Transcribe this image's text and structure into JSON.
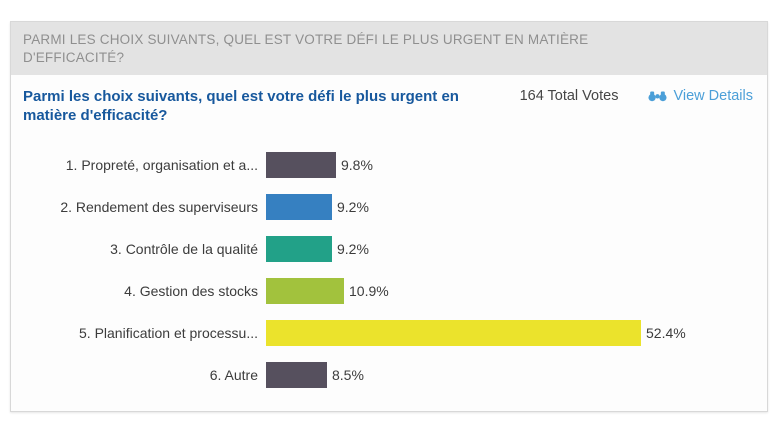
{
  "header": {
    "title": "PARMI LES CHOIX SUIVANTS, QUEL EST VOTRE DÉFI LE PLUS URGENT EN MATIÈRE D'EFFICACITÉ?"
  },
  "question": {
    "text": "Parmi les choix suivants, quel est votre défi le plus urgent en matière d'efficacité?",
    "total_votes_label": "164 Total Votes",
    "view_details_label": "View Details",
    "view_details_icon": "binoculars-icon"
  },
  "chart_data": {
    "type": "bar",
    "orientation": "horizontal",
    "title": "Parmi les choix suivants, quel est votre défi le plus urgent en matière d'efficacité?",
    "total_votes": 164,
    "categories": [
      "1. Propreté, organisation et a...",
      "2. Rendement des superviseurs",
      "3. Contrôle de la qualité",
      "4. Gestion des stocks",
      "5. Planification et processu...",
      "6. Autre"
    ],
    "values": [
      9.8,
      9.2,
      9.2,
      10.9,
      52.4,
      8.5
    ],
    "value_labels": [
      "9.8%",
      "9.2%",
      "9.2%",
      "10.9%",
      "52.4%",
      "8.5%"
    ],
    "bar_colors": [
      "#56505e",
      "#3680c1",
      "#22a188",
      "#a2c23d",
      "#ebe32c",
      "#56505e"
    ],
    "xlim": [
      0,
      56
    ],
    "grid": false,
    "legend": "none"
  },
  "colors": {
    "header_bg": "#e3e3e3",
    "header_text": "#8f8f8f",
    "question_blue": "#17589d",
    "link_blue": "#4b9fd8",
    "label_text": "#3c3c3c",
    "card_border": "#d8d8d8"
  }
}
